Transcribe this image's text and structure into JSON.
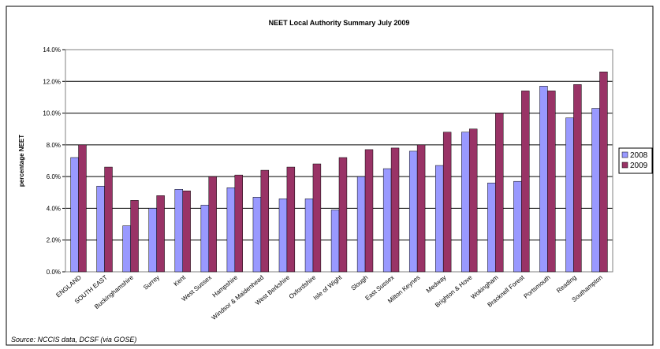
{
  "chart_data": {
    "type": "bar",
    "title": "NEET Local Authority Summary July 2009",
    "y_label": "percentage NEET",
    "source": "Source: NCCIS data, DCSF (via GOSE)",
    "categories": [
      "ENGLAND",
      "SOUTH EAST",
      "Buckinghamshire",
      "Surrey",
      "Kent",
      "West Sussex",
      "Hampshire",
      "Windsor & Maidenhead",
      "West Berkshire",
      "Oxfordshire",
      "Isle of Wight",
      "Slough",
      "East Sussex",
      "Milton Keynes",
      "Medway",
      "Brighton & Hove",
      "Wokingham",
      "Bracknell Forest",
      "Portsmouth",
      "Reading",
      "Southampton"
    ],
    "series": [
      {
        "name": "2008",
        "color": "#9999ff",
        "values": [
          7.2,
          5.4,
          2.9,
          4.0,
          5.2,
          4.2,
          5.3,
          4.7,
          4.6,
          4.6,
          3.9,
          6.0,
          6.5,
          7.6,
          6.7,
          8.8,
          5.6,
          5.7,
          11.7,
          9.7,
          10.3
        ]
      },
      {
        "name": "2009",
        "color": "#993366",
        "values": [
          8.0,
          6.6,
          4.5,
          4.8,
          5.1,
          6.0,
          6.1,
          6.4,
          6.6,
          6.8,
          7.2,
          7.7,
          7.8,
          8.0,
          8.8,
          9.0,
          10.0,
          11.4,
          11.4,
          11.8,
          12.6
        ]
      }
    ],
    "ylim": [
      0,
      14
    ],
    "yticks": [
      {
        "value": 0,
        "label": "0.0%"
      },
      {
        "value": 2,
        "label": "2.0%"
      },
      {
        "value": 4,
        "label": "4.0%"
      },
      {
        "value": 6,
        "label": "6.0%"
      },
      {
        "value": 8,
        "label": "8.0%"
      },
      {
        "value": 10,
        "label": "10.0%"
      },
      {
        "value": 12,
        "label": "12.0%"
      },
      {
        "value": 14,
        "label": "14.0%"
      }
    ],
    "grid": true,
    "legend": "right"
  }
}
